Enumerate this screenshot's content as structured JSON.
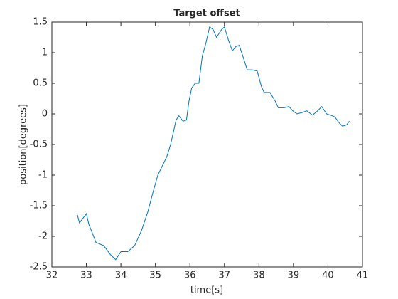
{
  "chart_data": {
    "type": "line",
    "title": "Target offset",
    "xlabel": "time[s]",
    "ylabel": "position[degrees]",
    "x": [
      32.74,
      32.8,
      33.0,
      33.07,
      33.28,
      33.5,
      33.7,
      33.85,
      34.0,
      34.2,
      34.4,
      34.6,
      34.78,
      34.92,
      35.07,
      35.33,
      35.44,
      35.6,
      35.68,
      35.8,
      35.9,
      35.97,
      36.05,
      36.15,
      36.26,
      36.36,
      36.46,
      36.57,
      36.67,
      36.77,
      36.92,
      37.0,
      37.12,
      37.23,
      37.33,
      37.43,
      37.53,
      37.66,
      37.8,
      37.95,
      38.07,
      38.15,
      38.32,
      38.48,
      38.56,
      38.73,
      38.87,
      38.98,
      39.1,
      39.24,
      39.39,
      39.55,
      39.7,
      39.82,
      39.96,
      40.07,
      40.2,
      40.33,
      40.42,
      40.54,
      40.62
    ],
    "series": [
      {
        "name": "Target offset",
        "color": "#0072bd",
        "values": [
          -1.65,
          -1.78,
          -1.63,
          -1.8,
          -2.1,
          -2.15,
          -2.3,
          -2.38,
          -2.25,
          -2.25,
          -2.15,
          -1.9,
          -1.6,
          -1.3,
          -1.0,
          -0.7,
          -0.5,
          -0.1,
          -0.03,
          -0.12,
          -0.1,
          0.2,
          0.42,
          0.5,
          0.5,
          0.95,
          1.15,
          1.42,
          1.38,
          1.25,
          1.38,
          1.42,
          1.2,
          1.03,
          1.1,
          1.12,
          0.95,
          0.72,
          0.72,
          0.7,
          0.45,
          0.35,
          0.35,
          0.2,
          0.1,
          0.1,
          0.12,
          0.05,
          0.0,
          0.02,
          0.05,
          -0.02,
          0.05,
          0.12,
          0.0,
          -0.02,
          -0.05,
          -0.15,
          -0.2,
          -0.18,
          -0.12
        ]
      }
    ],
    "xlim": [
      32,
      41
    ],
    "xticks": [
      32,
      33,
      34,
      35,
      36,
      37,
      38,
      39,
      40,
      41
    ],
    "ylim": [
      -2.5,
      1.5
    ],
    "yticks": [
      -2.5,
      -2,
      -1.5,
      -1,
      -0.5,
      0,
      0.5,
      1,
      1.5
    ],
    "grid": false
  }
}
